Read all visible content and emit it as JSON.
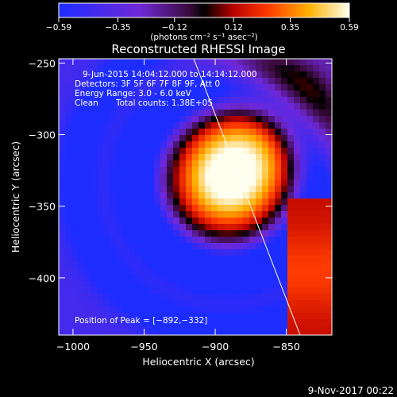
{
  "chart_data": {
    "type": "heatmap",
    "title": "Reconstructed RHESSI Image",
    "xlabel": "Heliocentric X (arcsec)",
    "ylabel": "Heliocentric Y (arcsec)",
    "x_ticks": [
      -1000,
      -950,
      -900,
      -850
    ],
    "x_tick_labels": [
      "−1000",
      "−950",
      "−900",
      "−850"
    ],
    "y_ticks": [
      -250,
      -300,
      -350,
      -400
    ],
    "y_tick_labels": [
      "−250",
      "−300",
      "−350",
      "−400"
    ],
    "xlim": [
      -1010,
      -818
    ],
    "ylim": [
      -440,
      -247
    ],
    "colorbar": {
      "range": [
        -0.59,
        0.59
      ],
      "ticks": [
        -0.59,
        -0.35,
        -0.12,
        0.12,
        0.35,
        0.59
      ],
      "tick_labels": [
        "−0.59",
        "−0.35",
        "−0.12",
        "0.12",
        "0.35",
        "0.59"
      ],
      "unit_label": "(photons cm⁻² s⁻¹ asec⁻²)"
    },
    "peak": [
      -892,
      -332
    ],
    "annotations": {
      "time_range": "9-Jun-2015 14:04:12.000 to 14:14:12.000",
      "detectors": "Detectors: 3F 5F 6F 7F 8F 9F, Att 0",
      "energy_range": "Energy Range: 3.0 - 6.0 keV",
      "method": "Clean",
      "total_counts": "Total counts: 1.38E+05",
      "peak_position": "Position of Peak = [−892,−332]"
    },
    "footer_date": "9-Nov-2017 00:22"
  }
}
